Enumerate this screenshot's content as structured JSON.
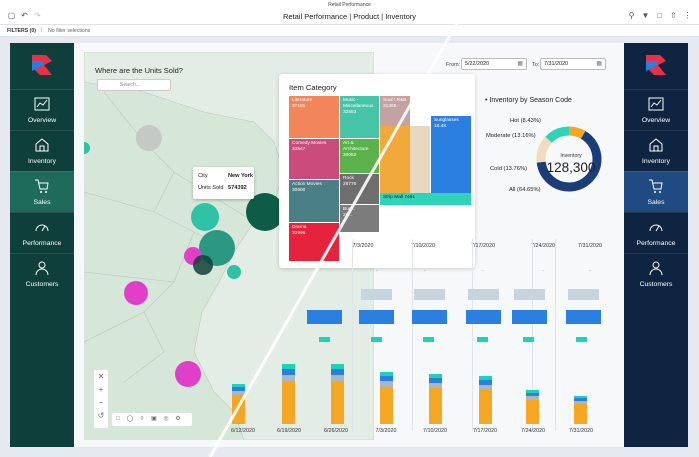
{
  "app": {
    "name": "Retail Performance",
    "page_title": "Retail Performance | Product | Inventory"
  },
  "filters": {
    "label": "FILTERS (0)",
    "separator": "|",
    "value": "No filter selections"
  },
  "nav": {
    "items": [
      {
        "label": "Overview",
        "icon": "line-chart-icon",
        "active": false
      },
      {
        "label": "Inventory",
        "icon": "box-icon",
        "active": false
      },
      {
        "label": "Sales",
        "icon": "cart-icon",
        "active": true
      },
      {
        "label": "Performance",
        "icon": "gauge-icon",
        "active": false
      },
      {
        "label": "Customers",
        "icon": "user-icon",
        "active": false
      }
    ]
  },
  "map": {
    "title": "Where are the Units Sold?",
    "search_placeholder": "Search...",
    "tooltip": {
      "city_key": "City",
      "city_val": "New York",
      "units_key": "Units Sold",
      "units_val": "574392"
    }
  },
  "dates": {
    "from_label": "From:",
    "from_value": "5/22/2020",
    "to_label": "To:",
    "to_value": "7/31/2020"
  },
  "category": {
    "title": "Item Category",
    "tiles": [
      {
        "name": "Literature",
        "value": "37101"
      },
      {
        "name": "Music - Miscellaneous",
        "value": "32553"
      },
      {
        "name": "Soul / R&B",
        "value": "31365"
      },
      {
        "name": "Sunglasses",
        "value": "18.4K"
      },
      {
        "name": "Comedy Movies",
        "value": "32547"
      },
      {
        "name": "Art & Architecture",
        "value": "30052"
      },
      {
        "name": "Rock",
        "value": "28776"
      },
      {
        "name": "Action Movies",
        "value": "30500"
      },
      {
        "name": "Bus...",
        "value": "26..."
      },
      {
        "name": "Drama",
        "value": "32996"
      },
      {
        "name": "Strip Mall",
        "value": "7481"
      }
    ]
  },
  "inventory": {
    "title": "Inventory by Season Code",
    "center_label": "Inventory",
    "center_value": "128,300",
    "segments": [
      {
        "label": "Hot (8.43%)",
        "pct": 8.43,
        "color": "#f5a623"
      },
      {
        "label": "Moderate (13.16%)",
        "pct": 13.16,
        "color": "#2fd3b7"
      },
      {
        "label": "Cold (13.76%)",
        "pct": 13.76,
        "color": "#f2dcc0"
      },
      {
        "label": "All (64.65%)",
        "pct": 64.65,
        "color": "#1d3d78"
      }
    ]
  },
  "weeks": {
    "headers": [
      "7/3/2020",
      "7/10/2020",
      "7/17/2020",
      "7/24/2020",
      "7/31/2020"
    ],
    "footers": [
      "6/12/2020",
      "6/19/2020",
      "6/26/2020",
      "7/3/2020",
      "7/10/2020",
      "7/17/2020",
      "7/24/2020",
      "7/31/2020"
    ],
    "dash": "-",
    "stack_heights": [
      40,
      60,
      60,
      52,
      50,
      48,
      34,
      28
    ],
    "stack_colors": [
      "#f5a623",
      "#a9b7c3",
      "#2b7fe0",
      "#19d4b5"
    ]
  },
  "colors": {
    "left_nav": "#0f3f3a",
    "right_nav": "#0f2440",
    "accent_blue": "#2b7fe0",
    "accent_teal": "#19d4b5",
    "accent_orange": "#f5a623"
  }
}
